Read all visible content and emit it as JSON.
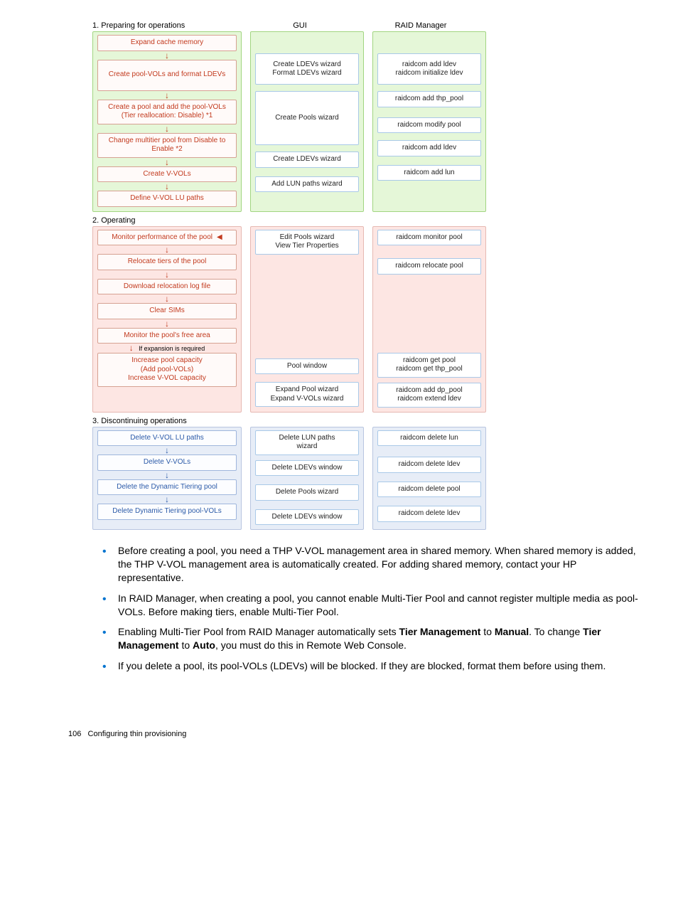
{
  "columns": {
    "ops": "1. Preparing for operations",
    "gui": "GUI",
    "raid": "RAID Manager"
  },
  "sec1": {
    "r1": {
      "ops": "Expand cache memory"
    },
    "r2": {
      "ops": "Create pool-VOLs and format LDEVs",
      "gui": "Create LDEVs wizard\nFormat LDEVs wizard",
      "raid": "raidcom add ldev\nraidcom initialize ldev"
    },
    "r3": {
      "ops": "Create a pool and add the pool-VOLs\n(Tier reallocation: Disable) *1",
      "raid": "raidcom add thp_pool"
    },
    "r4": {
      "ops": "Change multitier pool from Disable to\nEnable *2",
      "raid": "raidcom modify pool"
    },
    "gui34": "Create Pools wizard",
    "r5": {
      "ops": "Create V-VOLs",
      "gui": "Create LDEVs wizard",
      "raid": "raidcom add ldev"
    },
    "r6": {
      "ops": "Define V-VOL LU paths",
      "gui": "Add LUN paths wizard",
      "raid": "raidcom add lun"
    }
  },
  "sec2_title": "2. Operating",
  "sec2": {
    "r1": {
      "ops": "Monitor performance of the pool",
      "gui": "Edit Pools wizard\nView Tier Properties",
      "raid": "raidcom monitor pool"
    },
    "r2": {
      "ops": "Relocate tiers of the pool",
      "raid": "raidcom relocate pool"
    },
    "r3": {
      "ops": "Download relocation log file"
    },
    "r4": {
      "ops": "Clear SIMs"
    },
    "r5": {
      "ops": "Monitor the pool's free area",
      "gui": "Pool window",
      "raid": "raidcom get pool\nraidcom get thp_pool"
    },
    "expand_note": "If expansion is required",
    "r6": {
      "ops": "Increase pool capacity\n(Add pool-VOLs)\nIncrease V-VOL capacity",
      "gui": "Expand Pool wizard\nExpand V-VOLs wizard",
      "raid": "raidcom add dp_pool\nraidcom extend ldev"
    }
  },
  "sec3_title": "3. Discontinuing operations",
  "sec3": {
    "r1": {
      "ops": "Delete V-VOL LU paths",
      "gui": "Delete LUN paths\nwizard",
      "raid": "raidcom delete lun"
    },
    "r2": {
      "ops": "Delete V-VOLs",
      "gui": "Delete LDEVs window",
      "raid": "raidcom delete ldev"
    },
    "r3": {
      "ops": "Delete the Dynamic Tiering pool",
      "gui": "Delete Pools wizard",
      "raid": "raidcom delete pool"
    },
    "r4": {
      "ops": "Delete Dynamic Tiering pool-VOLs",
      "gui": "Delete LDEVs window",
      "raid": "raidcom delete ldev"
    }
  },
  "bullets": {
    "b1": "Before creating a pool, you need a THP V-VOL management area in shared memory. When shared memory is added, the THP V-VOL management area is automatically created. For adding shared memory, contact your HP representative.",
    "b2": "In RAID Manager, when creating a pool, you cannot enable Multi-Tier Pool and cannot register multiple media as pool-VOLs. Before making tiers, enable Multi-Tier Pool.",
    "b3a": "Enabling Multi-Tier Pool from RAID Manager automatically sets ",
    "b3b": "Tier Management",
    "b3c": " to ",
    "b3d": "Manual",
    "b3e": ". To change ",
    "b3f": "Tier Management",
    "b3g": " to ",
    "b3h": "Auto",
    "b3i": ", you must do this in Remote Web Console.",
    "b4": "If you delete a pool, its pool-VOLs (LDEVs) will be blocked. If they are blocked, format them before using them."
  },
  "footer": {
    "page": "106",
    "title": "Configuring thin provisioning"
  },
  "colors": {
    "blue_bullet": "#0073cf"
  }
}
